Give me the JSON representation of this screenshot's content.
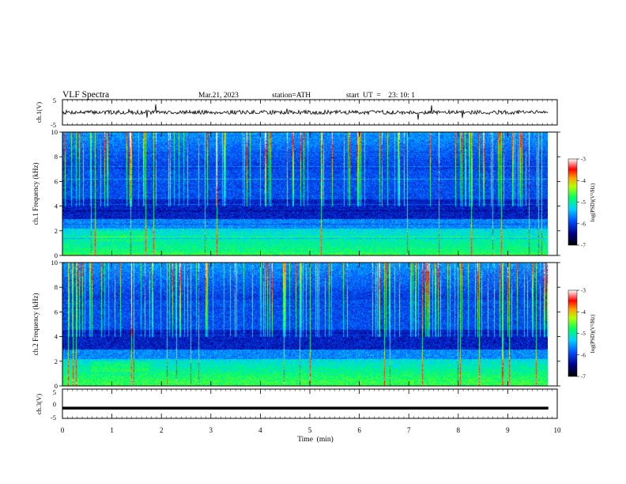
{
  "header": {
    "title": "VLF  Spectra",
    "date": "Mar.21, 2023",
    "station": "station=ATH",
    "start": "start  UT  =    23: 10: 1"
  },
  "chart_data": [
    {
      "type": "line",
      "panel": "ch1-waveform",
      "ylabel": "ch.1(V)",
      "ylim": [
        -5,
        5
      ],
      "y_ticks": [
        "5",
        "-5"
      ],
      "xlim": [
        0,
        10
      ],
      "baseline": 0
    },
    {
      "type": "heatmap",
      "panel": "ch1-spectrogram",
      "ylabel": "ch.1\nFrequency (kHz)",
      "ylim": [
        0,
        10
      ],
      "y_ticks": [
        "10",
        "8",
        "6",
        "4",
        "2",
        "0"
      ],
      "xlim": [
        0,
        9.82
      ],
      "colorbar": {
        "label": "log(PSD)(V²/Hz)",
        "range": [
          -7,
          -3
        ],
        "ticks": [
          "-3",
          "-4",
          "-5",
          "-6",
          "-7"
        ]
      }
    },
    {
      "type": "heatmap",
      "panel": "ch2-spectrogram",
      "ylabel": "ch.2\nFrequency (kHz)",
      "ylim": [
        0,
        10
      ],
      "y_ticks": [
        "10",
        "8",
        "6",
        "4",
        "2",
        "0"
      ],
      "xlim": [
        0,
        9.82
      ],
      "colorbar": {
        "label": "log(PSD)(V²/Hz)",
        "range": [
          -7,
          -3
        ],
        "ticks": [
          "-3",
          "-4",
          "-5",
          "-6",
          "-7"
        ]
      }
    },
    {
      "type": "line",
      "panel": "ch3-waveform",
      "ylabel": "ch.3(V)",
      "ylim": [
        -5,
        5
      ],
      "y_ticks": [
        "5",
        "0",
        "-5"
      ],
      "xlim": [
        0,
        10
      ],
      "baseline": -1.5
    }
  ],
  "x_axis": {
    "label": "Time  (min)",
    "ticks": [
      "0",
      "1",
      "2",
      "3",
      "4",
      "5",
      "6",
      "7",
      "8",
      "9",
      "10"
    ],
    "range": [
      0,
      10
    ]
  }
}
